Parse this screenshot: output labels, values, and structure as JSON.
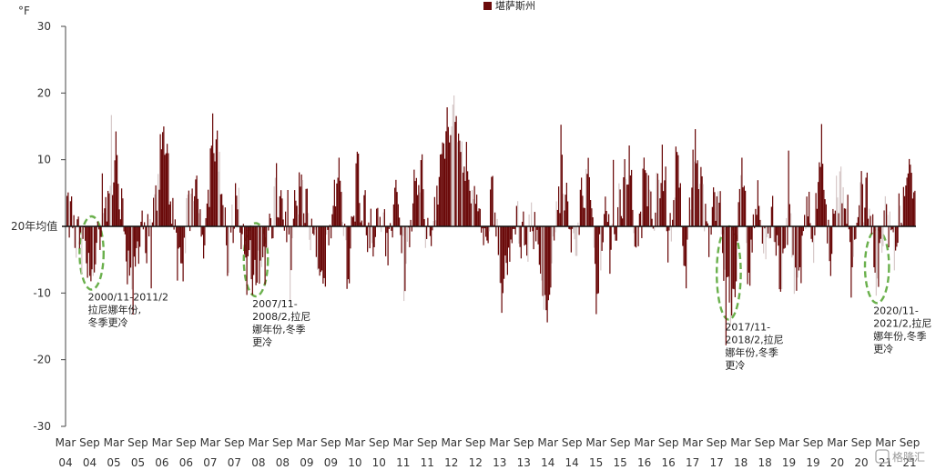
{
  "chart_data": {
    "type": "bar",
    "title": "",
    "unit_label": "°F",
    "zero_label": "20年均值",
    "legend": [
      {
        "name": "堪萨斯州",
        "color": "#6b0a0a"
      }
    ],
    "legend_placement": "top-center",
    "ylim": [
      -30,
      30
    ],
    "yticks": [
      30,
      20,
      10,
      -10,
      -20,
      -30
    ],
    "grid": false,
    "x_start": "2004-03",
    "x_end": "2021-10",
    "x_ticks": [
      {
        "m": "Mar",
        "y": "04"
      },
      {
        "m": "Sep",
        "y": "04"
      },
      {
        "m": "Mar",
        "y": "05"
      },
      {
        "m": "Sep",
        "y": "05"
      },
      {
        "m": "Mar",
        "y": "06"
      },
      {
        "m": "Sep",
        "y": "06"
      },
      {
        "m": "Mar",
        "y": "07"
      },
      {
        "m": "Sep",
        "y": "07"
      },
      {
        "m": "Mar",
        "y": "08"
      },
      {
        "m": "Sep",
        "y": "08"
      },
      {
        "m": "Mar",
        "y": "09"
      },
      {
        "m": "Sep",
        "y": "09"
      },
      {
        "m": "Mar",
        "y": "10"
      },
      {
        "m": "Sep",
        "y": "10"
      },
      {
        "m": "Mar",
        "y": "11"
      },
      {
        "m": "Sep",
        "y": "11"
      },
      {
        "m": "Mar",
        "y": "12"
      },
      {
        "m": "Sep",
        "y": "12"
      },
      {
        "m": "Mar",
        "y": "13"
      },
      {
        "m": "Sep",
        "y": "13"
      },
      {
        "m": "Mar",
        "y": "14"
      },
      {
        "m": "Sep",
        "y": "14"
      },
      {
        "m": "Mar",
        "y": "15"
      },
      {
        "m": "Sep",
        "y": "15"
      },
      {
        "m": "Mar",
        "y": "16"
      },
      {
        "m": "Sep",
        "y": "16"
      },
      {
        "m": "Mar",
        "y": "17"
      },
      {
        "m": "Sep",
        "y": "17"
      },
      {
        "m": "Mar",
        "y": "18"
      },
      {
        "m": "Sep",
        "y": "18"
      },
      {
        "m": "Mar",
        "y": "19"
      },
      {
        "m": "Sep",
        "y": "19"
      },
      {
        "m": "Mar",
        "y": "20"
      },
      {
        "m": "Sep",
        "y": "20"
      },
      {
        "m": "Mar",
        "y": "21"
      },
      {
        "m": "Sep",
        "y": "21"
      }
    ],
    "series": [
      {
        "name": "堪萨斯州",
        "keypoints": [
          [
            "2004-03",
            3
          ],
          [
            "2004-05",
            -2
          ],
          [
            "2004-07",
            -4
          ],
          [
            "2004-09",
            -7
          ],
          [
            "2004-11",
            -3
          ],
          [
            "2005-01",
            4
          ],
          [
            "2005-03",
            10
          ],
          [
            "2005-05",
            -2
          ],
          [
            "2005-07",
            -11
          ],
          [
            "2005-09",
            1
          ],
          [
            "2005-11",
            -3
          ],
          [
            "2006-01",
            4
          ],
          [
            "2006-03",
            15
          ],
          [
            "2006-05",
            3
          ],
          [
            "2006-07",
            -9
          ],
          [
            "2006-09",
            3
          ],
          [
            "2006-11",
            6
          ],
          [
            "2007-01",
            -2
          ],
          [
            "2007-03",
            14
          ],
          [
            "2007-05",
            8
          ],
          [
            "2007-07",
            -6
          ],
          [
            "2007-09",
            6
          ],
          [
            "2007-11",
            -4
          ],
          [
            "2008-01",
            -8
          ],
          [
            "2008-03",
            -6
          ],
          [
            "2008-05",
            -3
          ],
          [
            "2008-07",
            5
          ],
          [
            "2008-09",
            2
          ],
          [
            "2008-11",
            -2
          ],
          [
            "2009-01",
            7
          ],
          [
            "2009-03",
            3
          ],
          [
            "2009-05",
            -5
          ],
          [
            "2009-07",
            -8
          ],
          [
            "2009-09",
            4
          ],
          [
            "2009-11",
            8
          ],
          [
            "2010-01",
            -10
          ],
          [
            "2010-03",
            9
          ],
          [
            "2010-05",
            2
          ],
          [
            "2010-07",
            -3
          ],
          [
            "2010-09",
            3
          ],
          [
            "2010-11",
            -4
          ],
          [
            "2011-01",
            7
          ],
          [
            "2011-03",
            -10
          ],
          [
            "2011-05",
            4
          ],
          [
            "2011-07",
            8
          ],
          [
            "2011-09",
            -3
          ],
          [
            "2011-11",
            5
          ],
          [
            "2012-01",
            12
          ],
          [
            "2012-03",
            18
          ],
          [
            "2012-05",
            12
          ],
          [
            "2012-07",
            6
          ],
          [
            "2012-09",
            3
          ],
          [
            "2012-11",
            -3
          ],
          [
            "2013-01",
            4
          ],
          [
            "2013-03",
            -9
          ],
          [
            "2013-05",
            -4
          ],
          [
            "2013-07",
            3
          ],
          [
            "2013-09",
            -4
          ],
          [
            "2013-11",
            2
          ],
          [
            "2014-01",
            -8
          ],
          [
            "2014-03",
            -12
          ],
          [
            "2014-05",
            4
          ],
          [
            "2014-07",
            7
          ],
          [
            "2014-09",
            -4
          ],
          [
            "2014-11",
            3
          ],
          [
            "2015-01",
            8
          ],
          [
            "2015-03",
            -12
          ],
          [
            "2015-05",
            5
          ],
          [
            "2015-07",
            -3
          ],
          [
            "2015-09",
            4
          ],
          [
            "2015-11",
            10
          ],
          [
            "2016-01",
            -4
          ],
          [
            "2016-03",
            8
          ],
          [
            "2016-05",
            3
          ],
          [
            "2016-07",
            10
          ],
          [
            "2016-09",
            -5
          ],
          [
            "2016-11",
            11
          ],
          [
            "2017-01",
            -7
          ],
          [
            "2017-03",
            12
          ],
          [
            "2017-05",
            6
          ],
          [
            "2017-07",
            -3
          ],
          [
            "2017-09",
            5
          ],
          [
            "2017-11",
            -7
          ],
          [
            "2018-01",
            -13
          ],
          [
            "2018-03",
            10
          ],
          [
            "2018-05",
            -9
          ],
          [
            "2018-07",
            6
          ],
          [
            "2018-09",
            -5
          ],
          [
            "2018-11",
            3
          ],
          [
            "2019-01",
            -9
          ],
          [
            "2019-03",
            4
          ],
          [
            "2019-05",
            -12
          ],
          [
            "2019-07",
            4
          ],
          [
            "2019-09",
            -3
          ],
          [
            "2019-11",
            14
          ],
          [
            "2020-01",
            -6
          ],
          [
            "2020-03",
            7
          ],
          [
            "2020-05",
            3
          ],
          [
            "2020-07",
            -4
          ],
          [
            "2020-09",
            6
          ],
          [
            "2020-11",
            4
          ],
          [
            "2021-01",
            -10
          ],
          [
            "2021-03",
            6
          ],
          [
            "2021-05",
            -5
          ],
          [
            "2021-07",
            3
          ],
          [
            "2021-09",
            8
          ],
          [
            "2021-10",
            7
          ]
        ]
      }
    ],
    "annotations": [
      {
        "lines": [
          "2000/11-2011/2",
          "拉尼娜年份,",
          "冬季更冷"
        ],
        "date": "2004-09",
        "center_value": -4,
        "radius_months": 2,
        "radius_value": 5.5
      },
      {
        "lines": [
          "2007/11-",
          "2008/2,拉尼",
          "娜年份,冬季",
          "更冷"
        ],
        "date": "2008-02",
        "center_value": -5,
        "radius_months": 2,
        "radius_value": 5.5
      },
      {
        "lines": [
          "2017/11-",
          "2018/2,拉尼",
          "娜年份,冬季",
          "更冷"
        ],
        "date": "2017-12",
        "center_value": -7,
        "radius_months": 2,
        "radius_value": 7
      },
      {
        "lines": [
          "2020/11-",
          "2021/2,拉尼",
          "娜年份,冬季",
          "更冷"
        ],
        "date": "2021-01",
        "center_value": -6,
        "radius_months": 2,
        "radius_value": 5.5
      }
    ]
  },
  "watermark": "格隆汇"
}
